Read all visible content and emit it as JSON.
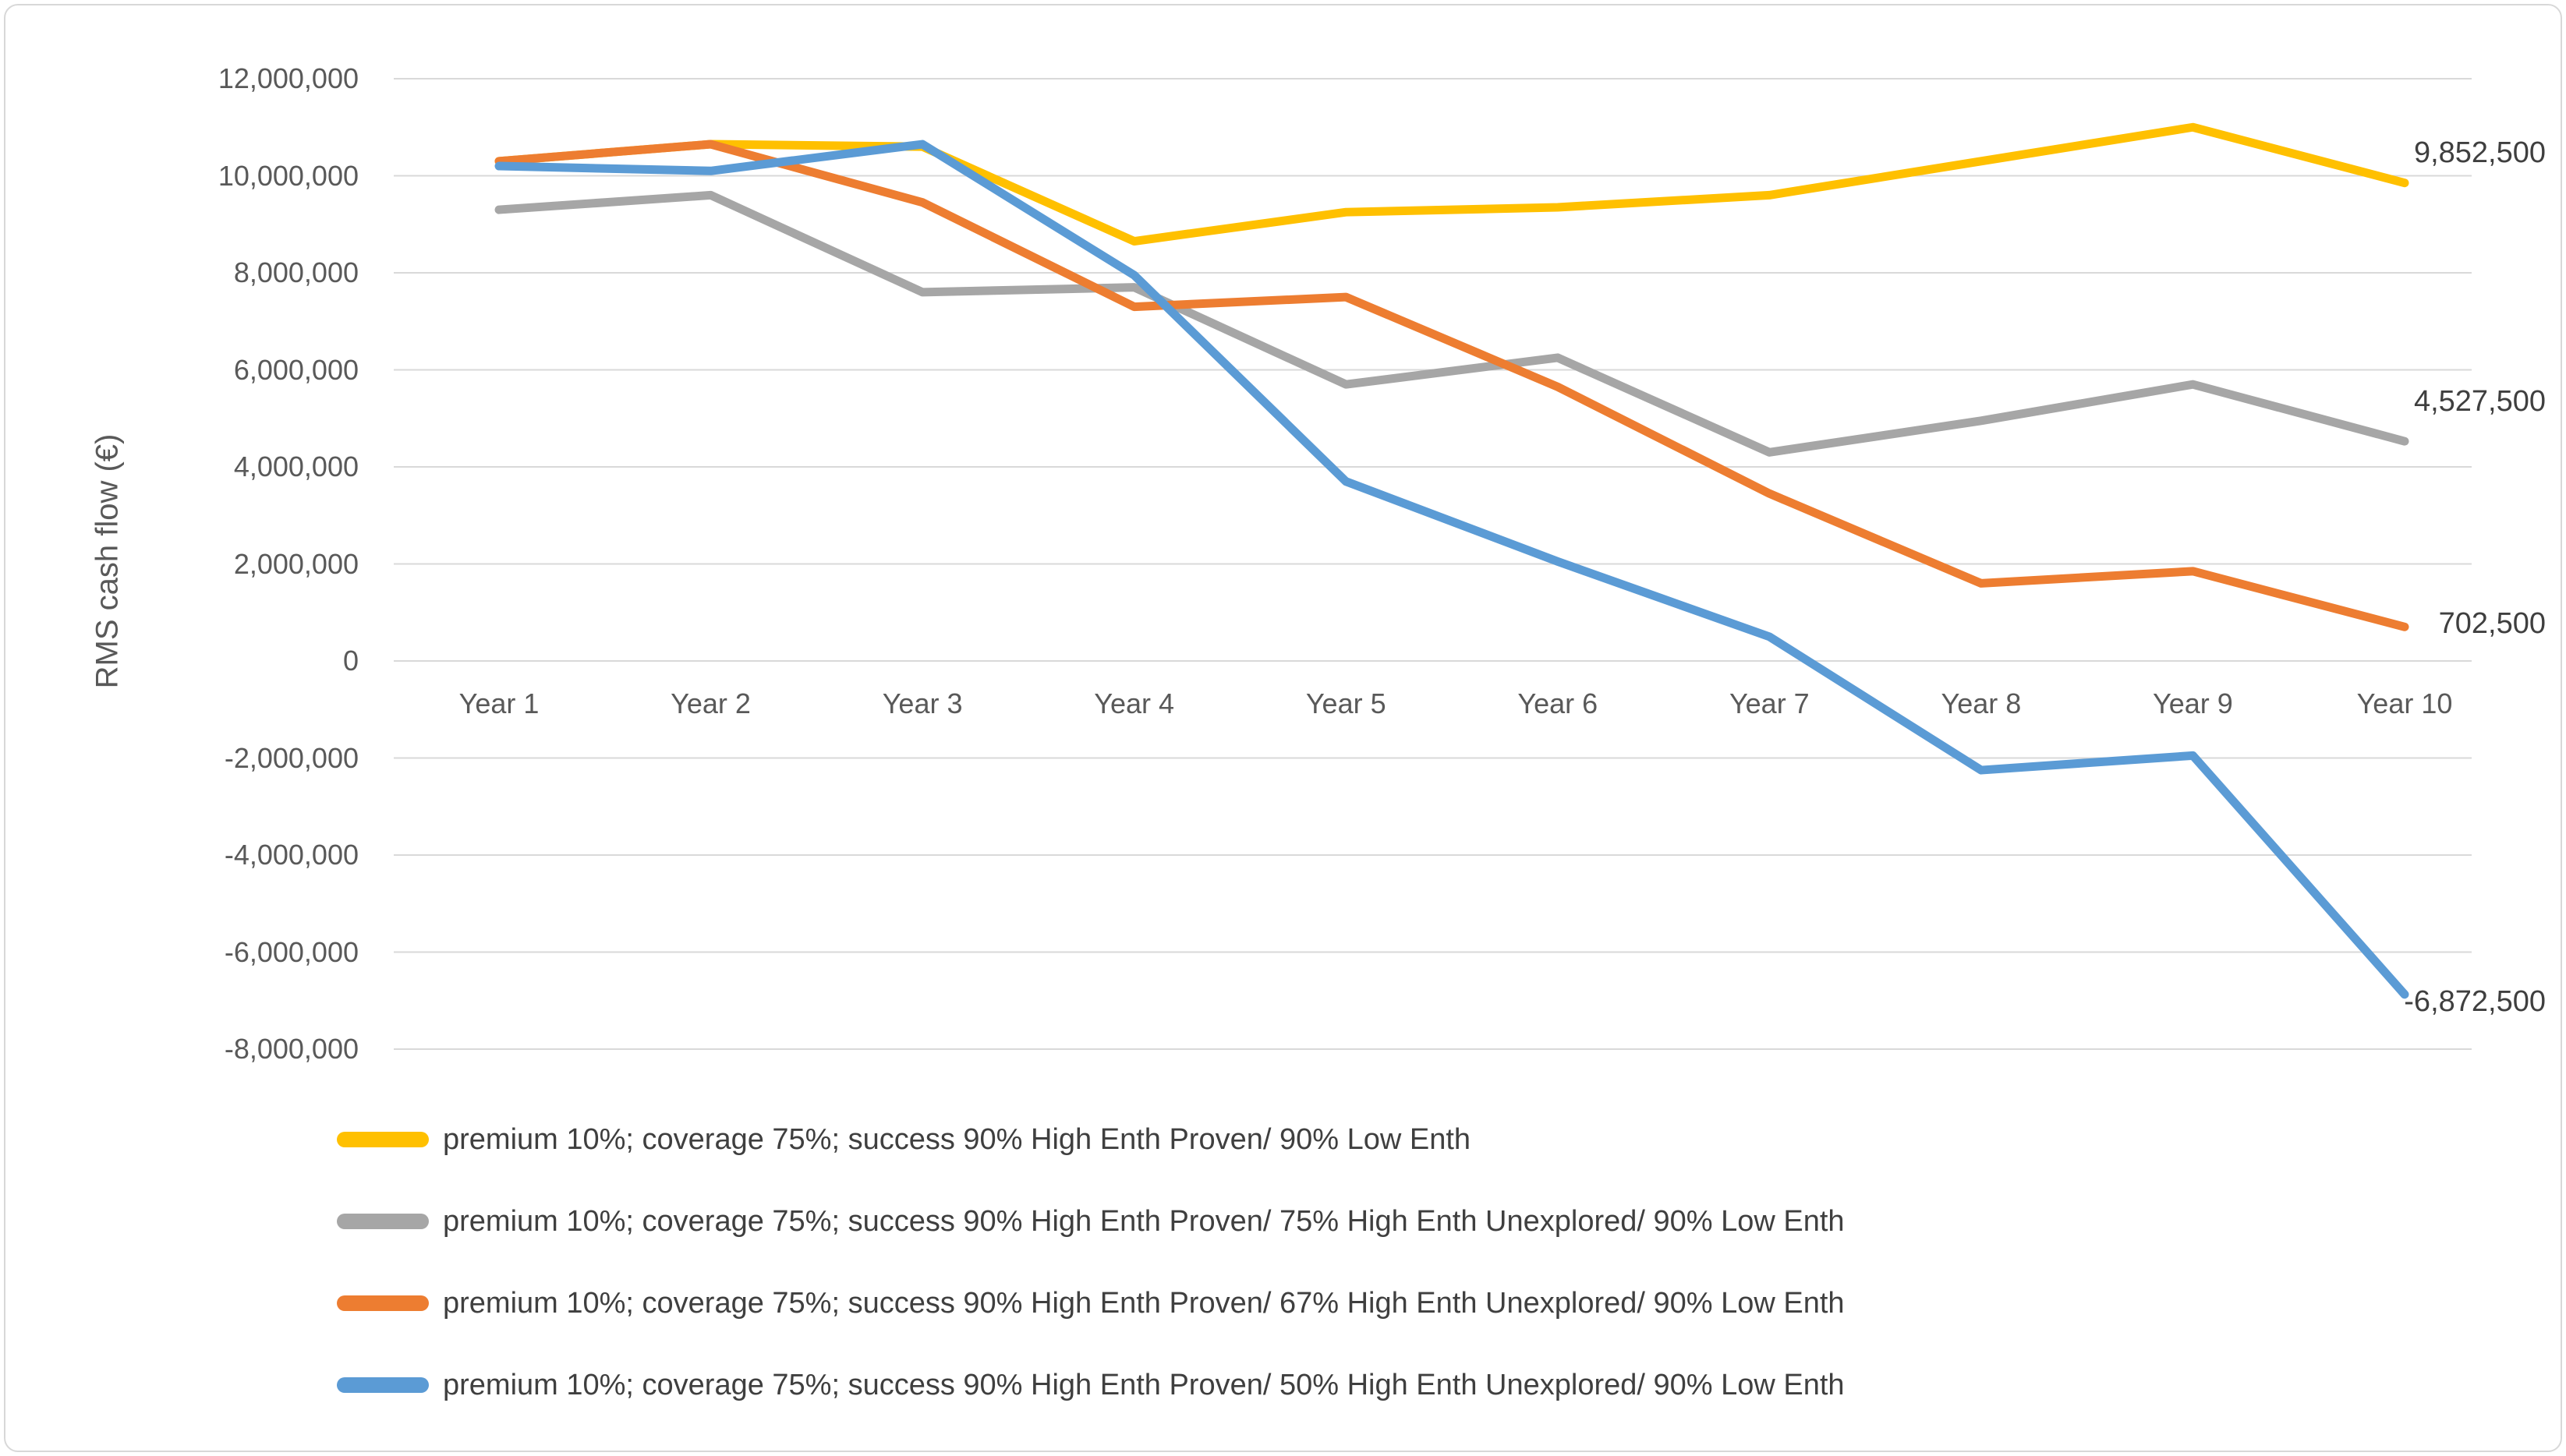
{
  "chart_data": {
    "type": "line",
    "title": "",
    "xlabel": "",
    "ylabel": "RMS cash flow (€)",
    "categories": [
      "Year 1",
      "Year 2",
      "Year 3",
      "Year 4",
      "Year 5",
      "Year 6",
      "Year 7",
      "Year 8",
      "Year 9",
      "Year 10"
    ],
    "ylim": [
      -8000000,
      12000000
    ],
    "y_tick_step": 2000000,
    "y_tick_labels": [
      "12,000,000",
      "10,000,000",
      "8,000,000",
      "6,000,000",
      "4,000,000",
      "2,000,000",
      "0",
      "-2,000,000",
      "-4,000,000",
      "-6,000,000",
      "-8,000,000"
    ],
    "grid": true,
    "legend_position": "bottom-left",
    "data_labels": "last-point-only",
    "series": [
      {
        "name": "premium 10%; coverage 75%; success 90% High Enth Proven/ 90% Low Enth",
        "color": "#FFC000",
        "values": [
          10300000,
          10650000,
          10600000,
          8650000,
          9250000,
          9350000,
          9600000,
          10300000,
          11000000,
          9852500
        ],
        "end_label": "9,852,500",
        "end_label_dy": -39
      },
      {
        "name": "premium 10%; coverage 75%; success 90% High Enth Proven/ 75% High Enth Unexplored/ 90% Low Enth",
        "color": "#A6A6A6",
        "values": [
          9300000,
          9600000,
          7600000,
          7700000,
          5700000,
          6250000,
          4300000,
          4950000,
          5700000,
          4527500
        ],
        "end_label": "4,527,500",
        "end_label_dy": -51
      },
      {
        "name": "premium 10%; coverage 75%; success 90% High Enth Proven/ 67% High Enth Unexplored/ 90% Low Enth",
        "color": "#ED7D31",
        "values": [
          10300000,
          10650000,
          9450000,
          7300000,
          7500000,
          5650000,
          3450000,
          1600000,
          1850000,
          702500
        ],
        "end_label": "702,500",
        "end_label_dy": -4
      },
      {
        "name": "premium 10%; coverage 75%; success 90% High Enth Proven/ 50% High Enth Unexplored/ 90% Low Enth",
        "color": "#5B9BD5",
        "values": [
          10200000,
          10100000,
          10650000,
          7950000,
          3700000,
          2050000,
          500000,
          -2250000,
          -1950000,
          -6872500
        ],
        "end_label": "-6,872,500",
        "end_label_dy": 9
      }
    ],
    "style": {
      "gridline_color": "#d9d9d9",
      "tick_text_color": "#595959",
      "label_text_color": "#3f3f3f",
      "background": "#ffffff"
    }
  }
}
